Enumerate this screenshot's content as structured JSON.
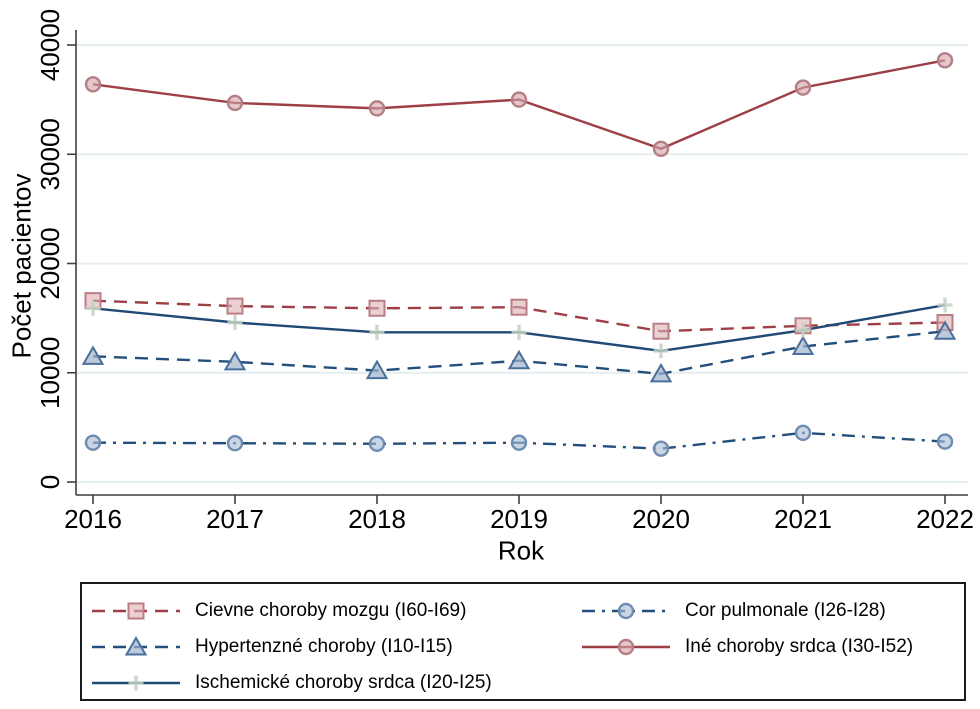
{
  "figure": {
    "background": "#ffffff",
    "grid_color": "#e4eef0",
    "axis_color": "#3f3f3f",
    "text_color": "#000000"
  },
  "axes": {
    "y_tick_labels": [
      "0",
      "10000",
      "20000",
      "30000",
      "40000"
    ],
    "x_tick_labels": [
      "2016",
      "2017",
      "2018",
      "2019",
      "2020",
      "2021",
      "2022"
    ],
    "y_axis_title": "Počet pacientov",
    "x_axis_title": "Rok"
  },
  "chart_data": {
    "type": "line",
    "title": "",
    "xlabel": "Rok",
    "ylabel": "Počet pacientov",
    "x": [
      2016,
      2017,
      2018,
      2019,
      2020,
      2021,
      2022
    ],
    "ylim": [
      0,
      40000
    ],
    "y_ticks": [
      0,
      10000,
      20000,
      30000,
      40000
    ],
    "grid": "horizontal",
    "legend_position": "bottom-box-2-columns",
    "series": [
      {
        "name": "Cievne choroby mozgu (I60-I69)",
        "values": [
          16600,
          16100,
          15900,
          16000,
          13800,
          14300,
          14600
        ],
        "line_color": "#9e3f47",
        "line_style": "dash",
        "marker": "square",
        "marker_fill": "#dfb3b7",
        "marker_stroke": "#bb7d84"
      },
      {
        "name": "Cor pulmonale (I26-I28)",
        "values": [
          3600,
          3550,
          3500,
          3600,
          3050,
          4500,
          3700
        ],
        "line_color": "#234f7c",
        "line_style": "dash-dot",
        "marker": "circle",
        "marker_fill": "#a9bdd4",
        "marker_stroke": "#6d8cb0"
      },
      {
        "name": "Hypertenzné choroby (I10-I15)",
        "values": [
          11500,
          11000,
          10200,
          11100,
          9900,
          12400,
          13800
        ],
        "line_color": "#234f7c",
        "line_style": "dash",
        "marker": "triangle",
        "marker_fill": "#9fb4cc",
        "marker_stroke": "#4a6f9c"
      },
      {
        "name": "Iné choroby srdca (I30-I52)",
        "values": [
          36400,
          34700,
          34200,
          35000,
          30500,
          36100,
          38600
        ],
        "line_color": "#9e3f47",
        "line_style": "solid",
        "marker": "circle",
        "marker_fill": "#d5a4a9",
        "marker_stroke": "#b47e85"
      },
      {
        "name": "Ischemické choroby srdca (I20-I25)",
        "values": [
          15900,
          14600,
          13700,
          13700,
          12000,
          13900,
          16200
        ],
        "line_color": "#1f4a75",
        "line_style": "solid",
        "marker": "plus",
        "marker_fill": "#c3d1c3",
        "marker_stroke": "#c3d1c3"
      }
    ]
  }
}
